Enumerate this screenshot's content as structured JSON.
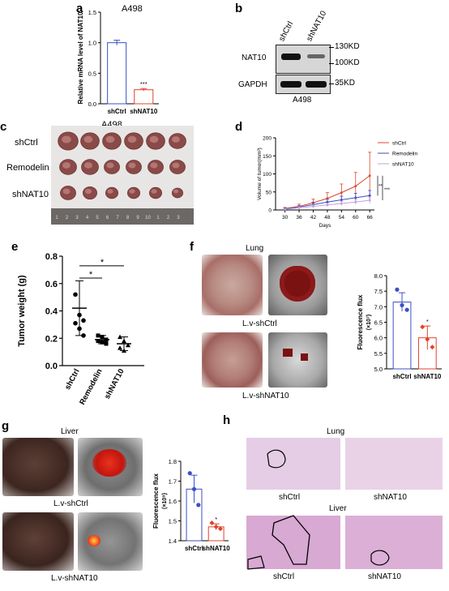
{
  "panels": {
    "a": "a",
    "b": "b",
    "c": "c",
    "d": "d",
    "e": "e",
    "f": "f",
    "g": "g",
    "h": "h"
  },
  "a": {
    "title": "A498",
    "chart_data": {
      "type": "bar",
      "categories": [
        "shCtrl",
        "shNAT10"
      ],
      "values": [
        1.0,
        0.23
      ],
      "errors": [
        0.04,
        0.02
      ],
      "ylabel": "Relative mRNA level of NAT10",
      "ylim": [
        0,
        1.5
      ],
      "yticks": [
        "0.0",
        "0.5",
        "1.0",
        "1.5"
      ],
      "annotations": [
        "***"
      ],
      "colors": [
        "#3b4fc6",
        "#e0442a"
      ]
    }
  },
  "b": {
    "lanes": [
      "shCtrl",
      "shNAT10"
    ],
    "rows": [
      "NAT10",
      "GAPDH"
    ],
    "markers": [
      "130KD",
      "100KD",
      "35KD"
    ],
    "caption": "A498"
  },
  "c": {
    "title": "A498",
    "rows": [
      "shCtrl",
      "Remodelin",
      "shNAT10"
    ],
    "ruler_numbers": [
      "1",
      "2",
      "3",
      "4",
      "5",
      "6",
      "7",
      "8",
      "9",
      "10",
      "1",
      "2",
      "3"
    ]
  },
  "d": {
    "chart_data": {
      "type": "line",
      "x": [
        30,
        36,
        42,
        48,
        54,
        60,
        66
      ],
      "xlabel": "Days",
      "ylabel": "Volume of tumor(mm³)",
      "ylim": [
        0,
        200
      ],
      "yticks": [
        "0",
        "50",
        "100",
        "150",
        "200"
      ],
      "series": [
        {
          "name": "shCtrl",
          "color": "#e0442a",
          "values": [
            4,
            10,
            20,
            32,
            48,
            66,
            95
          ],
          "err": [
            3,
            6,
            10,
            16,
            24,
            38,
            65
          ]
        },
        {
          "name": "Remodelin",
          "color": "#3b4fc6",
          "values": [
            3,
            8,
            15,
            22,
            28,
            34,
            40
          ],
          "err": [
            2,
            4,
            6,
            8,
            10,
            12,
            14
          ]
        },
        {
          "name": "shNAT10",
          "color": "#c6a2d8",
          "values": [
            2,
            6,
            10,
            14,
            18,
            22,
            27
          ],
          "err": [
            1,
            3,
            4,
            5,
            6,
            7,
            9
          ]
        }
      ],
      "annotations": [
        "**",
        "***"
      ]
    }
  },
  "e": {
    "chart_data": {
      "type": "scatter",
      "categories": [
        "shCtrl",
        "Remodelin",
        "shNAT10"
      ],
      "markers": [
        "circle",
        "square",
        "triangle"
      ],
      "points": [
        [
          0.52,
          0.37,
          0.33,
          0.31,
          0.27,
          0.22
        ],
        [
          0.22,
          0.21,
          0.19,
          0.18,
          0.17,
          0.16
        ],
        [
          0.21,
          0.18,
          0.15,
          0.13,
          0.11
        ]
      ],
      "means": [
        0.42,
        0.19,
        0.16
      ],
      "sd": [
        0.2,
        0.03,
        0.05
      ],
      "ylabel": "Tumor weight (g)",
      "ylim": [
        0,
        0.8
      ],
      "yticks": [
        "0.0",
        "0.2",
        "0.4",
        "0.6",
        "0.8"
      ],
      "annotations": [
        "*",
        "*"
      ]
    }
  },
  "f": {
    "title": "Lung",
    "captions": [
      "L.v-shCtrl",
      "L.v-shNAT10"
    ],
    "chart_data": {
      "type": "bar",
      "categories": [
        "shCtrl",
        "shNAT10"
      ],
      "values": [
        7.15,
        6.0
      ],
      "errors": [
        0.3,
        0.38
      ],
      "points": [
        [
          7.55,
          7.05,
          6.9
        ],
        [
          6.35,
          5.95,
          5.7
        ]
      ],
      "ylabel": "Fluorescence flux",
      "ylabel2": "(×10⁷)",
      "ylim": [
        5.0,
        8.0
      ],
      "yticks": [
        "5.0",
        "5.5",
        "6.0",
        "6.5",
        "7.0",
        "7.5",
        "8.0"
      ],
      "annotations": [
        "*"
      ],
      "colors": [
        "#3b4fc6",
        "#e0442a"
      ]
    }
  },
  "g": {
    "title": "Liver",
    "captions": [
      "L.v-shCtrl",
      "L.v-shNAT10"
    ],
    "chart_data": {
      "type": "bar",
      "categories": [
        "shCtrl",
        "shNAT10"
      ],
      "values": [
        1.66,
        1.47
      ],
      "errors": [
        0.07,
        0.015
      ],
      "points": [
        [
          1.74,
          1.66,
          1.58
        ],
        [
          1.49,
          1.47,
          1.46
        ]
      ],
      "ylabel": "Fluorescence flux",
      "ylabel2": "(×10⁹)",
      "ylim": [
        1.4,
        1.8
      ],
      "yticks": [
        "1.4",
        "1.5",
        "1.6",
        "1.7",
        "1.8"
      ],
      "annotations": [
        "*"
      ],
      "colors": [
        "#3b4fc6",
        "#e0442a"
      ]
    }
  },
  "h": {
    "sections": [
      "Lung",
      "Liver"
    ],
    "captions": [
      "shCtrl",
      "shNAT10",
      "shCtrl",
      "shNAT10"
    ]
  }
}
